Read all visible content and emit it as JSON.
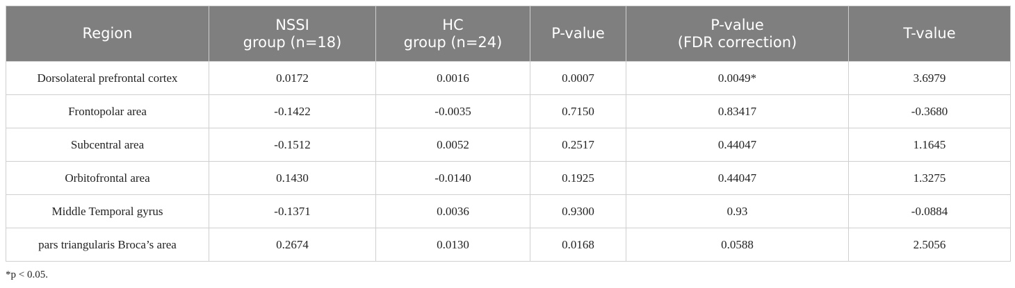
{
  "table": {
    "header": [
      [
        "Region"
      ],
      [
        "NSSI",
        "group (n=18)"
      ],
      [
        "HC",
        "group (n=24)"
      ],
      [
        "P-value"
      ],
      [
        "P-value",
        "(FDR correction)"
      ],
      [
        "T-value"
      ]
    ],
    "rows": [
      [
        "Dorsolateral prefrontal cortex",
        "0.0172",
        "0.0016",
        "0.0007",
        "0.0049*",
        "3.6979"
      ],
      [
        "Frontopolar area",
        "-0.1422",
        "-0.0035",
        "0.7150",
        "0.83417",
        "-0.3680"
      ],
      [
        "Subcentral area",
        "-0.1512",
        "0.0052",
        "0.2517",
        "0.44047",
        "1.1645"
      ],
      [
        "Orbitofrontal area",
        "0.1430",
        "-0.0140",
        "0.1925",
        "0.44047",
        "1.3275"
      ],
      [
        "Middle Temporal gyrus",
        "-0.1371",
        "0.0036",
        "0.9300",
        "0.93",
        "-0.0884"
      ],
      [
        "pars triangularis Broca’s area",
        "0.2674",
        "0.0130",
        "0.0168",
        "0.0588",
        "2.5056"
      ]
    ]
  },
  "footnote": "*p < 0.05."
}
